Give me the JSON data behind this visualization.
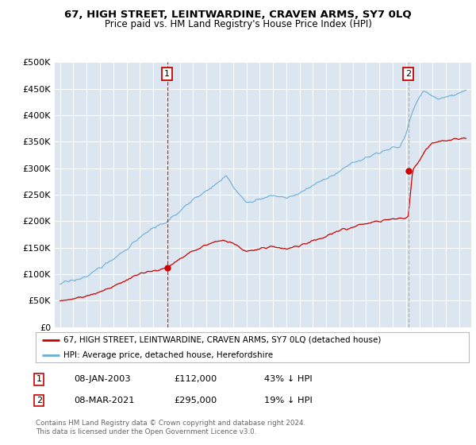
{
  "title": "67, HIGH STREET, LEINTWARDINE, CRAVEN ARMS, SY7 0LQ",
  "subtitle": "Price paid vs. HM Land Registry's House Price Index (HPI)",
  "legend1": "67, HIGH STREET, LEINTWARDINE, CRAVEN ARMS, SY7 0LQ (detached house)",
  "legend2": "HPI: Average price, detached house, Herefordshire",
  "purchase1_date": 2003.04,
  "purchase1_price": 112000,
  "purchase1_label": "08-JAN-2003",
  "purchase1_amount": "£112,000",
  "purchase1_pct": "43% ↓ HPI",
  "purchase2_date": 2021.17,
  "purchase2_price": 295000,
  "purchase2_label": "08-MAR-2021",
  "purchase2_amount": "£295,000",
  "purchase2_pct": "19% ↓ HPI",
  "red_color": "#cc0000",
  "blue_color": "#6baed6",
  "bg_color": "#dce6f1",
  "grid_color": "#ffffff",
  "footer": "Contains HM Land Registry data © Crown copyright and database right 2024.\nThis data is licensed under the Open Government Licence v3.0.",
  "ylim": [
    0,
    500000
  ],
  "yticks": [
    0,
    50000,
    100000,
    150000,
    200000,
    250000,
    300000,
    350000,
    400000,
    450000,
    500000
  ],
  "xlim_start": 1994.6,
  "xlim_end": 2025.9
}
